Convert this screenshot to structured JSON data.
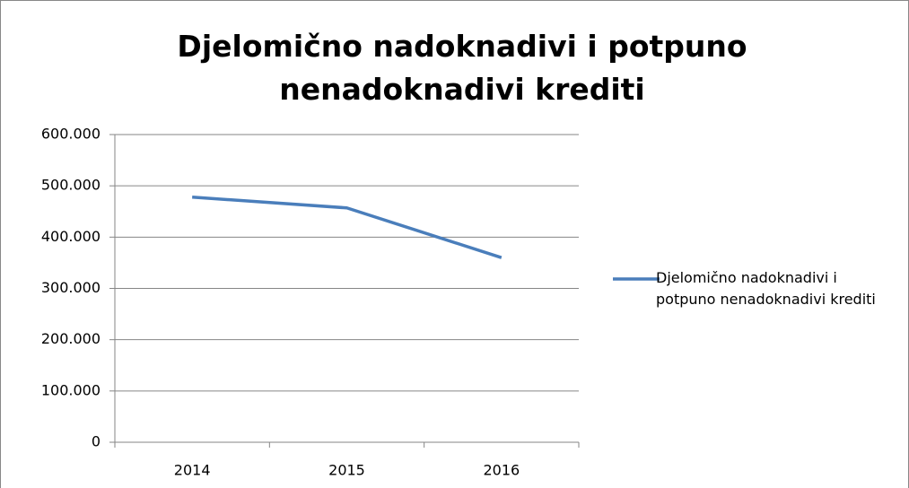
{
  "chart_data": {
    "type": "line",
    "title": "Djelomično nadoknadivi i potpuno nenadoknadivi krediti",
    "categories": [
      "2014",
      "2015",
      "2016"
    ],
    "series": [
      {
        "name": "Djelomično nadoknadivi i potpuno nenadoknadivi krediti",
        "color": "#4a7ebb",
        "values": [
          478000,
          457000,
          360000
        ]
      }
    ],
    "ylim": [
      0,
      600000
    ],
    "yticks": [
      0,
      {
        "value": 100000,
        "label": "100.000"
      },
      {
        "value": 200000,
        "label": "200.000"
      },
      {
        "value": 300000,
        "label": "300.000"
      },
      {
        "value": 400000,
        "label": "400.000"
      },
      {
        "value": 500000,
        "label": "500.000"
      },
      {
        "value": 600000,
        "label": "600.000"
      }
    ],
    "grid": true,
    "legend": "right"
  }
}
